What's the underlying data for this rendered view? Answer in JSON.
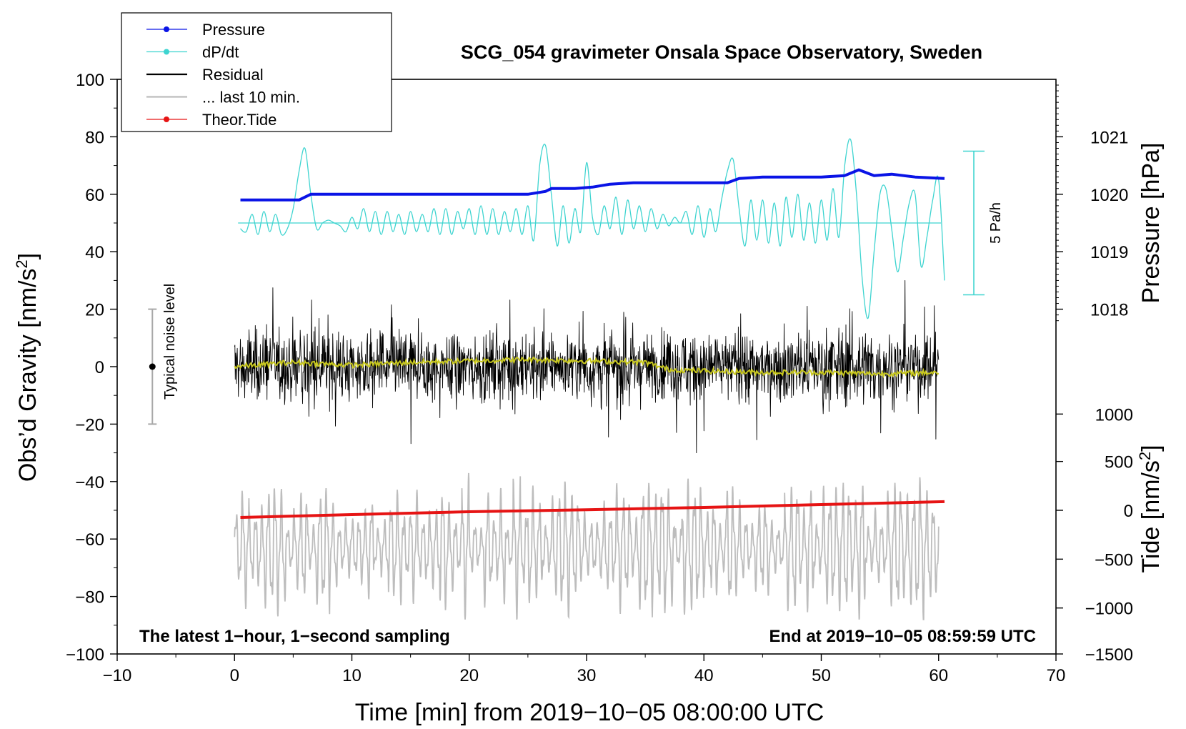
{
  "colors": {
    "pressure": "#0a14e6",
    "dpdt": "#3ed4d0",
    "residual": "#000000",
    "last10": "#bdbdbd",
    "tide": "#e61414",
    "smooth": "#c8c81e",
    "noise_bar": "#a8a8a8"
  },
  "chart_data": {
    "type": "line",
    "title": "SCG_054 gravimeter Onsala Space Observatory, Sweden",
    "xlabel": "Time [min] from 2019−10−05 08:00:00 UTC",
    "ylabel_left": "Obs’d Gravity [nm/s",
    "ylabel_left_sup": "2",
    "ylabel_left_end": "]",
    "ylabel_right_pressure": "Pressure [hPa]",
    "ylabel_right_tide": "Tide [nm/s",
    "ylabel_right_tide_sup": "2",
    "ylabel_right_tide_end": "]",
    "xlim": [
      -10,
      70
    ],
    "ylim": [
      -100,
      100
    ],
    "x_ticks": [
      "−10",
      "0",
      "10",
      "20",
      "30",
      "40",
      "50",
      "60",
      "70"
    ],
    "x_tick_values": [
      -10,
      0,
      10,
      20,
      30,
      40,
      50,
      60,
      70
    ],
    "y_ticks": [
      "100",
      "80",
      "60",
      "40",
      "20",
      "0",
      "−20",
      "−40",
      "−60",
      "−80",
      "−100"
    ],
    "y_tick_values": [
      100,
      80,
      60,
      40,
      20,
      0,
      -20,
      -40,
      -60,
      -80,
      -100
    ],
    "pressure_axis": {
      "ticks": [
        "1021",
        "1020",
        "1019",
        "1018"
      ],
      "values": [
        1021,
        1020,
        1019,
        1018
      ],
      "gravity_equivalent": [
        80,
        60,
        40,
        20
      ]
    },
    "tide_axis": {
      "ticks": [
        "1000",
        "500",
        "0",
        "−500",
        "−1000",
        "−1500"
      ],
      "values": [
        1000,
        500,
        0,
        -500,
        -1000,
        -1500
      ],
      "gravity_equivalent": [
        -16.5,
        -33,
        -50,
        -67,
        -84,
        -100
      ]
    },
    "legend": [
      {
        "label": "Pressure",
        "style": "line-dot",
        "color_key": "pressure"
      },
      {
        "label": "dP/dt",
        "style": "line-dot",
        "color_key": "dpdt"
      },
      {
        "label": "Residual",
        "style": "line",
        "color_key": "residual"
      },
      {
        "label": "... last 10 min.",
        "style": "line",
        "color_key": "last10"
      },
      {
        "label": "Theor.Tide",
        "style": "line-dot",
        "color_key": "tide"
      }
    ],
    "annotations": {
      "bottom_left": "The latest 1−hour, 1−second sampling",
      "bottom_right": "End at 2019−10−05 08:59:59 UTC",
      "noise_label": "Typical noise level",
      "scale_label": "5 Pa/h"
    },
    "noise_bar": {
      "x": -7,
      "center": 0,
      "low": -20,
      "high": 20
    },
    "scale_bar": {
      "x": 63,
      "low": 25,
      "high": 75
    },
    "series": [
      {
        "name": "Pressure",
        "color_key": "pressure",
        "units": "gravity-equivalent",
        "x": [
          0.5,
          3,
          5.5,
          6.5,
          10,
          15,
          20,
          25,
          26.5,
          27,
          29,
          30.5,
          32,
          34,
          37,
          40,
          42,
          43,
          45,
          50,
          52,
          53.2,
          54.5,
          56,
          58,
          60.5
        ],
        "values": [
          58,
          58,
          58,
          60,
          60,
          60,
          60,
          60,
          61,
          62,
          62,
          62.5,
          63.5,
          64,
          64,
          64,
          64,
          65.5,
          66,
          66,
          66.5,
          68.5,
          66.5,
          67,
          66,
          65.5
        ]
      },
      {
        "name": "dP/dt baseline",
        "color_key": "dpdt",
        "x": [
          0.3,
          60.2
        ],
        "values": [
          50,
          50
        ]
      },
      {
        "name": "dP/dt",
        "color_key": "dpdt",
        "x": [
          0.5,
          1,
          1.5,
          2,
          2.5,
          3,
          3.5,
          4,
          4.5,
          5,
          5.5,
          6,
          6.5,
          7,
          7.5,
          8,
          8.5,
          9,
          9.5,
          10,
          10.5,
          11,
          11.5,
          12,
          12.5,
          13,
          13.5,
          14,
          14.5,
          15,
          15.5,
          16,
          16.5,
          17,
          17.5,
          18,
          18.5,
          19,
          19.5,
          20,
          20.5,
          21,
          21.5,
          22,
          22.5,
          23,
          23.5,
          24,
          24.5,
          25,
          25.5,
          26,
          26.5,
          27,
          27.5,
          28,
          28.5,
          29,
          29.5,
          30,
          30.5,
          31,
          31.5,
          32,
          32.5,
          33,
          33.5,
          34,
          34.5,
          35,
          35.5,
          36,
          36.5,
          37,
          37.5,
          38,
          38.5,
          39,
          39.5,
          40,
          40.5,
          41,
          41.5,
          42,
          42.5,
          43,
          43.5,
          44,
          44.5,
          45,
          45.5,
          46,
          46.5,
          47,
          47.5,
          48,
          48.5,
          49,
          49.5,
          50,
          50.5,
          51,
          51.5,
          52,
          52.5,
          53,
          53.5,
          54,
          54.5,
          55,
          55.5,
          56,
          56.5,
          57,
          57.5,
          58,
          58.5,
          59,
          59.5,
          60,
          60.5
        ],
        "values": [
          48,
          47,
          53,
          46,
          54,
          47,
          53,
          46,
          48,
          55,
          68,
          76,
          60,
          48,
          50,
          51,
          50,
          49,
          47,
          52,
          48,
          55,
          47,
          54,
          46,
          54,
          47,
          53,
          46,
          54,
          47,
          53,
          47,
          55,
          46,
          55,
          46,
          54,
          48,
          55,
          46,
          56,
          46,
          55,
          46,
          54,
          47,
          55,
          46,
          56,
          44,
          70,
          77,
          60,
          42,
          56,
          43,
          55,
          47,
          71,
          52,
          46,
          56,
          48,
          59,
          46,
          58,
          48,
          56,
          47,
          55,
          48,
          53,
          49,
          52,
          50,
          54,
          46,
          56,
          45,
          55,
          47,
          58,
          68,
          72,
          55,
          42,
          58,
          44,
          58,
          43,
          57,
          42,
          59,
          45,
          60,
          44,
          57,
          43,
          58,
          44,
          62,
          45,
          70,
          79,
          60,
          30,
          17,
          40,
          60,
          62,
          48,
          33,
          45,
          57,
          60,
          35,
          45,
          58,
          65,
          30
        ]
      },
      {
        "name": "Residual",
        "color_key": "residual",
        "x_range": [
          0,
          60
        ],
        "typical_amplitude": 10,
        "peak_range": [
          -30,
          30
        ]
      },
      {
        "name": "Residual smoothed",
        "color_key": "smooth",
        "x": [
          0,
          5,
          10,
          15,
          20,
          25,
          30,
          35,
          37,
          40,
          45,
          50,
          55,
          60
        ],
        "values": [
          0,
          1.5,
          0.5,
          1.5,
          2,
          2.5,
          2,
          1.5,
          -1,
          -1.5,
          -2,
          -2,
          -2.5,
          -2
        ]
      },
      {
        "name": "... last 10 min.",
        "color_key": "last10",
        "x_range": [
          0,
          60
        ],
        "center": -63,
        "typical_amplitude": 9,
        "peak_range": [
          -88,
          -33
        ]
      },
      {
        "name": "Theor.Tide",
        "color_key": "tide",
        "units": "gravity-equivalent",
        "x": [
          0.5,
          10,
          20,
          30,
          40,
          50,
          60.5
        ],
        "values": [
          -52.5,
          -51.5,
          -50.5,
          -49.8,
          -49,
          -48,
          -47
        ]
      }
    ]
  }
}
